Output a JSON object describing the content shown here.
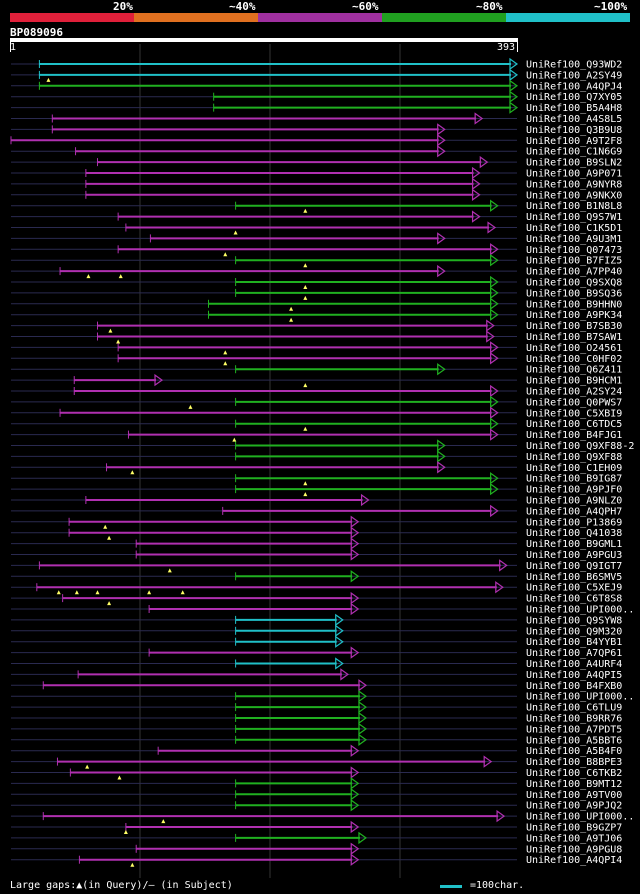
{
  "scale": {
    "labels": [
      "20%",
      "~40%",
      "~60%",
      "~80%",
      "~100%"
    ],
    "colors": [
      "#e0203a",
      "#e07020",
      "#a030a0",
      "#20a020",
      "#20c0c8"
    ]
  },
  "query": {
    "id": "BP089096",
    "start": "1",
    "end": "393",
    "length": 393
  },
  "colors": {
    "magenta": "#b030b0",
    "green": "#20b020",
    "cyan": "#20c0c8",
    "dim": "#2a2a50",
    "marker": "#ffff66"
  },
  "legend": {
    "gaps": "Large gaps:▲(in Query)/— (in Subject)",
    "scale": "=100char."
  },
  "hits": [
    {
      "name": "UniRef100_Q93WD2",
      "start": 23,
      "end": 393,
      "color": "cyan"
    },
    {
      "name": "UniRef100_A2SY49",
      "start": 23,
      "end": 393,
      "color": "cyan",
      "markers": [
        30
      ]
    },
    {
      "name": "UniRef100_A4QPJ4",
      "start": 23,
      "end": 393,
      "color": "green"
    },
    {
      "name": "UniRef100_Q7XY05",
      "start": 158,
      "end": 393,
      "color": "green"
    },
    {
      "name": "UniRef100_B5A4H8",
      "start": 158,
      "end": 393,
      "color": "green"
    },
    {
      "name": "UniRef100_A4S8L5",
      "start": 33,
      "end": 366,
      "color": "magenta"
    },
    {
      "name": "UniRef100_Q3B9U8",
      "start": 33,
      "end": 337,
      "color": "magenta"
    },
    {
      "name": "UniRef100_A9T2F8",
      "start": 1,
      "end": 337,
      "color": "magenta"
    },
    {
      "name": "UniRef100_C1N6G9",
      "start": 51,
      "end": 337,
      "color": "magenta"
    },
    {
      "name": "UniRef100_B9SLN2",
      "start": 68,
      "end": 370,
      "color": "magenta"
    },
    {
      "name": "UniRef100_A9P071",
      "start": 59,
      "end": 364,
      "color": "magenta"
    },
    {
      "name": "UniRef100_A9NYR8",
      "start": 59,
      "end": 364,
      "color": "magenta"
    },
    {
      "name": "UniRef100_A9NKX0",
      "start": 59,
      "end": 364,
      "color": "magenta"
    },
    {
      "name": "UniRef100_B1N8L8",
      "start": 175,
      "end": 378,
      "color": "green",
      "markers": [
        229
      ]
    },
    {
      "name": "UniRef100_Q9S7W1",
      "start": 84,
      "end": 364,
      "color": "magenta"
    },
    {
      "name": "UniRef100_C1K5D1",
      "start": 90,
      "end": 376,
      "color": "magenta",
      "markers": [
        175
      ]
    },
    {
      "name": "UniRef100_A9U3M1",
      "start": 109,
      "end": 337,
      "color": "magenta"
    },
    {
      "name": "UniRef100_Q07473",
      "start": 84,
      "end": 378,
      "color": "magenta",
      "markers": [
        167
      ]
    },
    {
      "name": "UniRef100_B7FIZ5",
      "start": 175,
      "end": 378,
      "color": "green",
      "markers": [
        229
      ]
    },
    {
      "name": "UniRef100_A7PP40",
      "start": 39,
      "end": 337,
      "color": "magenta",
      "markers": [
        61,
        86
      ]
    },
    {
      "name": "UniRef100_Q9SXQ8",
      "start": 175,
      "end": 378,
      "color": "green",
      "markers": [
        229
      ]
    },
    {
      "name": "UniRef100_B9SQ36",
      "start": 175,
      "end": 378,
      "color": "green",
      "markers": [
        229
      ]
    },
    {
      "name": "UniRef100_B9HHN0",
      "start": 154,
      "end": 378,
      "color": "green",
      "markers": [
        218
      ]
    },
    {
      "name": "UniRef100_A9PK34",
      "start": 154,
      "end": 378,
      "color": "green",
      "markers": [
        218
      ]
    },
    {
      "name": "UniRef100_B7SB30",
      "start": 68,
      "end": 375,
      "color": "magenta",
      "markers": [
        78
      ]
    },
    {
      "name": "UniRef100_B7SAW1",
      "start": 68,
      "end": 375,
      "color": "magenta",
      "markers": [
        84
      ]
    },
    {
      "name": "UniRef100_O24561",
      "start": 84,
      "end": 378,
      "color": "magenta",
      "markers": [
        167
      ]
    },
    {
      "name": "UniRef100_C0HF02",
      "start": 84,
      "end": 378,
      "color": "magenta",
      "markers": [
        167
      ]
    },
    {
      "name": "UniRef100_Q6Z411",
      "start": 175,
      "end": 337,
      "color": "green"
    },
    {
      "name": "UniRef100_B9HCM1",
      "start": 50,
      "end": 118,
      "color": "magenta",
      "markers": [
        229
      ]
    },
    {
      "name": "UniRef100_A2SY24",
      "start": 50,
      "end": 378,
      "color": "magenta"
    },
    {
      "name": "UniRef100_Q0PWS7",
      "start": 175,
      "end": 378,
      "color": "green",
      "markers": [
        140
      ]
    },
    {
      "name": "UniRef100_C5XBI9",
      "start": 39,
      "end": 378,
      "color": "magenta"
    },
    {
      "name": "UniRef100_C6TDC5",
      "start": 175,
      "end": 378,
      "color": "green",
      "markers": [
        229
      ]
    },
    {
      "name": "UniRef100_B4FJG1",
      "start": 92,
      "end": 378,
      "color": "magenta",
      "markers": [
        174
      ]
    },
    {
      "name": "UniRef100_Q9XF88-2",
      "start": 175,
      "end": 337,
      "color": "green"
    },
    {
      "name": "UniRef100_Q9XF88",
      "start": 175,
      "end": 337,
      "color": "green"
    },
    {
      "name": "UniRef100_C1EH09",
      "start": 75,
      "end": 337,
      "color": "magenta",
      "markers": [
        95
      ]
    },
    {
      "name": "UniRef100_B9IG87",
      "start": 175,
      "end": 378,
      "color": "green",
      "markers": [
        229
      ]
    },
    {
      "name": "UniRef100_A9PJF0",
      "start": 175,
      "end": 378,
      "color": "green",
      "markers": [
        229
      ]
    },
    {
      "name": "UniRef100_A9NLZ0",
      "start": 59,
      "end": 278,
      "color": "magenta"
    },
    {
      "name": "UniRef100_A4QPH7",
      "start": 165,
      "end": 378,
      "color": "magenta"
    },
    {
      "name": "UniRef100_P13869",
      "start": 46,
      "end": 270,
      "color": "magenta",
      "markers": [
        74
      ]
    },
    {
      "name": "UniRef100_Q41038",
      "start": 46,
      "end": 270,
      "color": "magenta",
      "markers": [
        77
      ]
    },
    {
      "name": "UniRef100_B9GML1",
      "start": 98,
      "end": 270,
      "color": "magenta"
    },
    {
      "name": "UniRef100_A9PGU3",
      "start": 98,
      "end": 270,
      "color": "magenta"
    },
    {
      "name": "UniRef100_Q9IGT7",
      "start": 23,
      "end": 385,
      "color": "magenta",
      "markers": [
        124
      ]
    },
    {
      "name": "UniRef100_B6SMV5",
      "start": 175,
      "end": 270,
      "color": "green"
    },
    {
      "name": "UniRef100_C5XEJ9",
      "start": 21,
      "end": 382,
      "color": "magenta",
      "markers": [
        38,
        52,
        68,
        108,
        134
      ]
    },
    {
      "name": "UniRef100_C6T8S8",
      "start": 41,
      "end": 270,
      "color": "magenta",
      "markers": [
        77
      ]
    },
    {
      "name": "UniRef100_UPI000..",
      "start": 108,
      "end": 270,
      "color": "magenta"
    },
    {
      "name": "UniRef100_Q9SYW8",
      "start": 175,
      "end": 258,
      "color": "cyan"
    },
    {
      "name": "UniRef100_Q9M320",
      "start": 175,
      "end": 258,
      "color": "cyan"
    },
    {
      "name": "UniRef100_B4YYB1",
      "start": 175,
      "end": 258,
      "color": "cyan"
    },
    {
      "name": "UniRef100_A7QP61",
      "start": 108,
      "end": 270,
      "color": "magenta"
    },
    {
      "name": "UniRef100_A4URF4",
      "start": 175,
      "end": 258,
      "color": "cyan"
    },
    {
      "name": "UniRef100_A4QPI5",
      "start": 53,
      "end": 262,
      "color": "magenta"
    },
    {
      "name": "UniRef100_B4FXB0",
      "start": 26,
      "end": 276,
      "color": "magenta"
    },
    {
      "name": "UniRef100_UPI000..",
      "start": 175,
      "end": 276,
      "color": "green"
    },
    {
      "name": "UniRef100_C6TLU9",
      "start": 175,
      "end": 276,
      "color": "green"
    },
    {
      "name": "UniRef100_B9RR76",
      "start": 175,
      "end": 276,
      "color": "green"
    },
    {
      "name": "UniRef100_A7PDT5",
      "start": 175,
      "end": 276,
      "color": "green"
    },
    {
      "name": "UniRef100_A5BBT6",
      "start": 175,
      "end": 276,
      "color": "green"
    },
    {
      "name": "UniRef100_A5B4F0",
      "start": 115,
      "end": 270,
      "color": "magenta"
    },
    {
      "name": "UniRef100_B8BPE3",
      "start": 37,
      "end": 373,
      "color": "magenta",
      "markers": [
        60
      ]
    },
    {
      "name": "UniRef100_C6TKB2",
      "start": 47,
      "end": 270,
      "color": "magenta",
      "markers": [
        85
      ]
    },
    {
      "name": "UniRef100_B9MT12",
      "start": 175,
      "end": 270,
      "color": "green"
    },
    {
      "name": "UniRef100_A9TV00",
      "start": 175,
      "end": 270,
      "color": "green"
    },
    {
      "name": "UniRef100_A9PJQ2",
      "start": 175,
      "end": 270,
      "color": "green"
    },
    {
      "name": "UniRef100_UPI000..",
      "start": 26,
      "end": 383,
      "color": "magenta",
      "markers": [
        119
      ]
    },
    {
      "name": "UniRef100_B9GZP7",
      "start": 90,
      "end": 270,
      "color": "magenta",
      "markers": [
        90
      ]
    },
    {
      "name": "UniRef100_A9TJ06",
      "start": 175,
      "end": 276,
      "color": "green"
    },
    {
      "name": "UniRef100_A9PGU8",
      "start": 98,
      "end": 270,
      "color": "magenta"
    },
    {
      "name": "UniRef100_A4QPI4",
      "start": 54,
      "end": 270,
      "color": "magenta",
      "markers": [
        95
      ]
    }
  ]
}
